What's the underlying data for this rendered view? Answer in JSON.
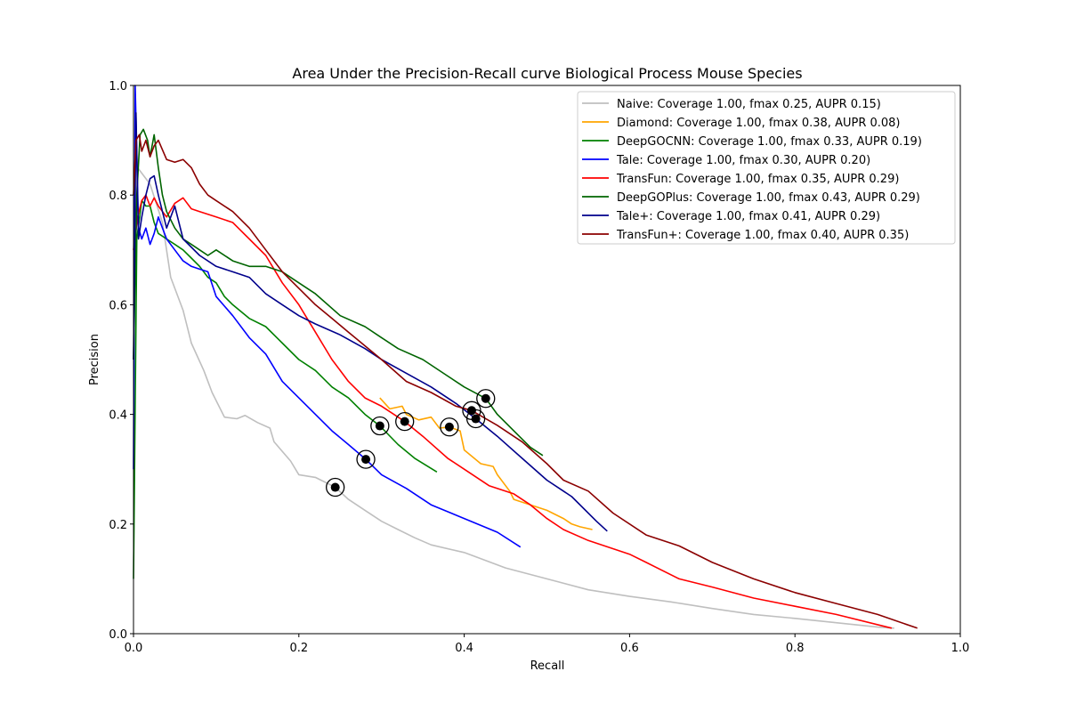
{
  "chart_data": {
    "type": "line",
    "title": "Area Under the Precision-Recall curve Biological Process Mouse Species",
    "xlabel": "Recall",
    "ylabel": "Precision",
    "xlim": [
      0,
      1
    ],
    "ylim": [
      0,
      1
    ],
    "xticks": [
      "0.0",
      "0.2",
      "0.4",
      "0.6",
      "0.8",
      "1.0"
    ],
    "yticks": [
      "0.0",
      "0.2",
      "0.4",
      "0.6",
      "0.8",
      "1.0"
    ],
    "grid": false,
    "legend_position": "top-right",
    "series": [
      {
        "name": "Naive",
        "label": "Naive: Coverage  1.00, fmax  0.25, AUPR 0.15)",
        "color": "#bfbfbf",
        "fmax_point": [
          0.244,
          0.267
        ],
        "x": [
          0.0,
          0.005,
          0.02,
          0.035,
          0.045,
          0.06,
          0.07,
          0.085,
          0.095,
          0.11,
          0.125,
          0.135,
          0.15,
          0.165,
          0.17,
          0.19,
          0.2,
          0.22,
          0.244,
          0.26,
          0.28,
          0.3,
          0.32,
          0.34,
          0.36,
          0.4,
          0.45,
          0.5,
          0.55,
          0.6,
          0.65,
          0.7,
          0.75,
          0.8,
          0.85,
          0.9,
          0.92
        ],
        "y": [
          0.7,
          0.85,
          0.82,
          0.75,
          0.65,
          0.59,
          0.53,
          0.48,
          0.44,
          0.395,
          0.392,
          0.398,
          0.385,
          0.375,
          0.35,
          0.315,
          0.29,
          0.285,
          0.267,
          0.245,
          0.225,
          0.205,
          0.19,
          0.175,
          0.162,
          0.148,
          0.12,
          0.1,
          0.08,
          0.068,
          0.058,
          0.046,
          0.035,
          0.028,
          0.02,
          0.012,
          0.01
        ]
      },
      {
        "name": "Diamond",
        "label": "Diamond: Coverage  1.00, fmax  0.38, AUPR 0.08)",
        "color": "#ffa500",
        "fmax_point": [
          0.382,
          0.377
        ],
        "x": [
          0.298,
          0.31,
          0.325,
          0.33,
          0.345,
          0.36,
          0.37,
          0.382,
          0.395,
          0.4,
          0.42,
          0.435,
          0.44,
          0.455,
          0.46,
          0.48,
          0.5,
          0.52,
          0.53,
          0.54,
          0.555
        ],
        "y": [
          0.43,
          0.41,
          0.415,
          0.4,
          0.39,
          0.395,
          0.375,
          0.377,
          0.37,
          0.335,
          0.31,
          0.305,
          0.29,
          0.26,
          0.245,
          0.235,
          0.225,
          0.21,
          0.2,
          0.195,
          0.19
        ]
      },
      {
        "name": "DeepGOCNN",
        "label": "DeepGOCNN: Coverage  1.00, fmax  0.33, AUPR 0.19)",
        "color": "#008000",
        "fmax_point": [
          0.298,
          0.379
        ],
        "x": [
          0.0,
          0.004,
          0.01,
          0.015,
          0.02,
          0.025,
          0.03,
          0.04,
          0.05,
          0.06,
          0.07,
          0.08,
          0.09,
          0.1,
          0.11,
          0.12,
          0.14,
          0.16,
          0.18,
          0.2,
          0.22,
          0.24,
          0.26,
          0.28,
          0.298,
          0.32,
          0.34,
          0.367
        ],
        "y": [
          0.1,
          0.72,
          0.79,
          0.78,
          0.78,
          0.75,
          0.73,
          0.72,
          0.71,
          0.7,
          0.685,
          0.67,
          0.65,
          0.64,
          0.615,
          0.6,
          0.575,
          0.56,
          0.53,
          0.5,
          0.48,
          0.45,
          0.43,
          0.4,
          0.379,
          0.345,
          0.32,
          0.295
        ]
      },
      {
        "name": "Tale",
        "label": "Tale: Coverage  1.00, fmax  0.30, AUPR 0.20)",
        "color": "#0000ff",
        "fmax_point": [
          0.281,
          0.318
        ],
        "x": [
          0.0,
          0.002,
          0.006,
          0.01,
          0.015,
          0.02,
          0.025,
          0.03,
          0.035,
          0.04,
          0.05,
          0.06,
          0.07,
          0.08,
          0.09,
          0.1,
          0.12,
          0.14,
          0.16,
          0.18,
          0.2,
          0.22,
          0.24,
          0.26,
          0.281,
          0.3,
          0.33,
          0.36,
          0.4,
          0.44,
          0.468
        ],
        "y": [
          0.3,
          1.0,
          0.74,
          0.72,
          0.74,
          0.71,
          0.73,
          0.76,
          0.74,
          0.72,
          0.7,
          0.68,
          0.67,
          0.665,
          0.66,
          0.615,
          0.58,
          0.54,
          0.51,
          0.46,
          0.43,
          0.4,
          0.37,
          0.345,
          0.318,
          0.29,
          0.265,
          0.235,
          0.21,
          0.185,
          0.158
        ]
      },
      {
        "name": "TransFun",
        "label": "TransFun: Coverage  1.00, fmax  0.35, AUPR 0.29)",
        "color": "#ff0000",
        "fmax_point": [
          0.328,
          0.387
        ],
        "x": [
          0.0,
          0.005,
          0.01,
          0.015,
          0.02,
          0.025,
          0.03,
          0.04,
          0.05,
          0.06,
          0.07,
          0.08,
          0.1,
          0.12,
          0.14,
          0.16,
          0.18,
          0.2,
          0.22,
          0.24,
          0.26,
          0.28,
          0.3,
          0.328,
          0.35,
          0.38,
          0.4,
          0.43,
          0.46,
          0.48,
          0.5,
          0.52,
          0.55,
          0.6,
          0.62,
          0.66,
          0.7,
          0.75,
          0.8,
          0.85,
          0.917
        ],
        "y": [
          0.7,
          0.76,
          0.79,
          0.8,
          0.78,
          0.795,
          0.78,
          0.76,
          0.785,
          0.795,
          0.775,
          0.77,
          0.76,
          0.75,
          0.72,
          0.69,
          0.64,
          0.6,
          0.55,
          0.5,
          0.46,
          0.43,
          0.415,
          0.387,
          0.36,
          0.32,
          0.3,
          0.27,
          0.255,
          0.235,
          0.21,
          0.19,
          0.17,
          0.145,
          0.13,
          0.1,
          0.085,
          0.065,
          0.05,
          0.035,
          0.01
        ]
      },
      {
        "name": "DeepGOPlus",
        "label": "DeepGOPlus: Coverage  1.00, fmax  0.43, AUPR 0.29)",
        "color": "#006400",
        "fmax_point": [
          0.426,
          0.429
        ],
        "x": [
          0.0,
          0.004,
          0.008,
          0.012,
          0.017,
          0.02,
          0.025,
          0.03,
          0.035,
          0.04,
          0.05,
          0.06,
          0.07,
          0.08,
          0.09,
          0.1,
          0.12,
          0.14,
          0.16,
          0.18,
          0.2,
          0.22,
          0.25,
          0.28,
          0.3,
          0.32,
          0.35,
          0.38,
          0.4,
          0.426,
          0.44,
          0.46,
          0.48,
          0.495
        ],
        "y": [
          0.5,
          0.8,
          0.91,
          0.92,
          0.9,
          0.87,
          0.91,
          0.85,
          0.8,
          0.77,
          0.74,
          0.72,
          0.71,
          0.7,
          0.69,
          0.7,
          0.68,
          0.67,
          0.67,
          0.66,
          0.64,
          0.62,
          0.58,
          0.56,
          0.54,
          0.52,
          0.5,
          0.47,
          0.45,
          0.429,
          0.4,
          0.37,
          0.34,
          0.325
        ]
      },
      {
        "name": "Tale+",
        "label": "Tale+: Coverage  1.00, fmax  0.41, AUPR 0.29)",
        "color": "#00008b",
        "fmax_point": [
          0.414,
          0.392
        ],
        "x": [
          0.0,
          0.003,
          0.006,
          0.01,
          0.015,
          0.02,
          0.025,
          0.03,
          0.035,
          0.04,
          0.05,
          0.06,
          0.08,
          0.1,
          0.12,
          0.14,
          0.16,
          0.18,
          0.2,
          0.22,
          0.25,
          0.28,
          0.3,
          0.33,
          0.36,
          0.39,
          0.414,
          0.44,
          0.47,
          0.5,
          0.53,
          0.56,
          0.573
        ],
        "y": [
          0.5,
          0.95,
          0.72,
          0.76,
          0.8,
          0.83,
          0.835,
          0.8,
          0.77,
          0.74,
          0.78,
          0.72,
          0.69,
          0.67,
          0.66,
          0.65,
          0.62,
          0.6,
          0.58,
          0.565,
          0.545,
          0.52,
          0.5,
          0.475,
          0.45,
          0.42,
          0.392,
          0.36,
          0.32,
          0.28,
          0.25,
          0.205,
          0.187
        ]
      },
      {
        "name": "TransFun+",
        "label": "TransFun+: Coverage  1.00, fmax  0.40, AUPR 0.35)",
        "color": "#8b0000",
        "fmax_point": [
          0.409,
          0.407
        ],
        "x": [
          0.0,
          0.003,
          0.007,
          0.01,
          0.015,
          0.02,
          0.025,
          0.03,
          0.04,
          0.05,
          0.06,
          0.07,
          0.08,
          0.09,
          0.1,
          0.12,
          0.14,
          0.16,
          0.18,
          0.2,
          0.22,
          0.24,
          0.26,
          0.28,
          0.3,
          0.33,
          0.36,
          0.39,
          0.409,
          0.44,
          0.47,
          0.5,
          0.52,
          0.55,
          0.58,
          0.62,
          0.66,
          0.7,
          0.75,
          0.8,
          0.85,
          0.9,
          0.948
        ],
        "y": [
          0.8,
          0.9,
          0.91,
          0.88,
          0.9,
          0.87,
          0.89,
          0.9,
          0.865,
          0.86,
          0.865,
          0.85,
          0.82,
          0.8,
          0.79,
          0.77,
          0.74,
          0.7,
          0.66,
          0.63,
          0.6,
          0.575,
          0.55,
          0.525,
          0.5,
          0.46,
          0.44,
          0.415,
          0.407,
          0.38,
          0.35,
          0.31,
          0.28,
          0.26,
          0.22,
          0.18,
          0.16,
          0.13,
          0.1,
          0.075,
          0.055,
          0.035,
          0.01
        ]
      }
    ]
  }
}
